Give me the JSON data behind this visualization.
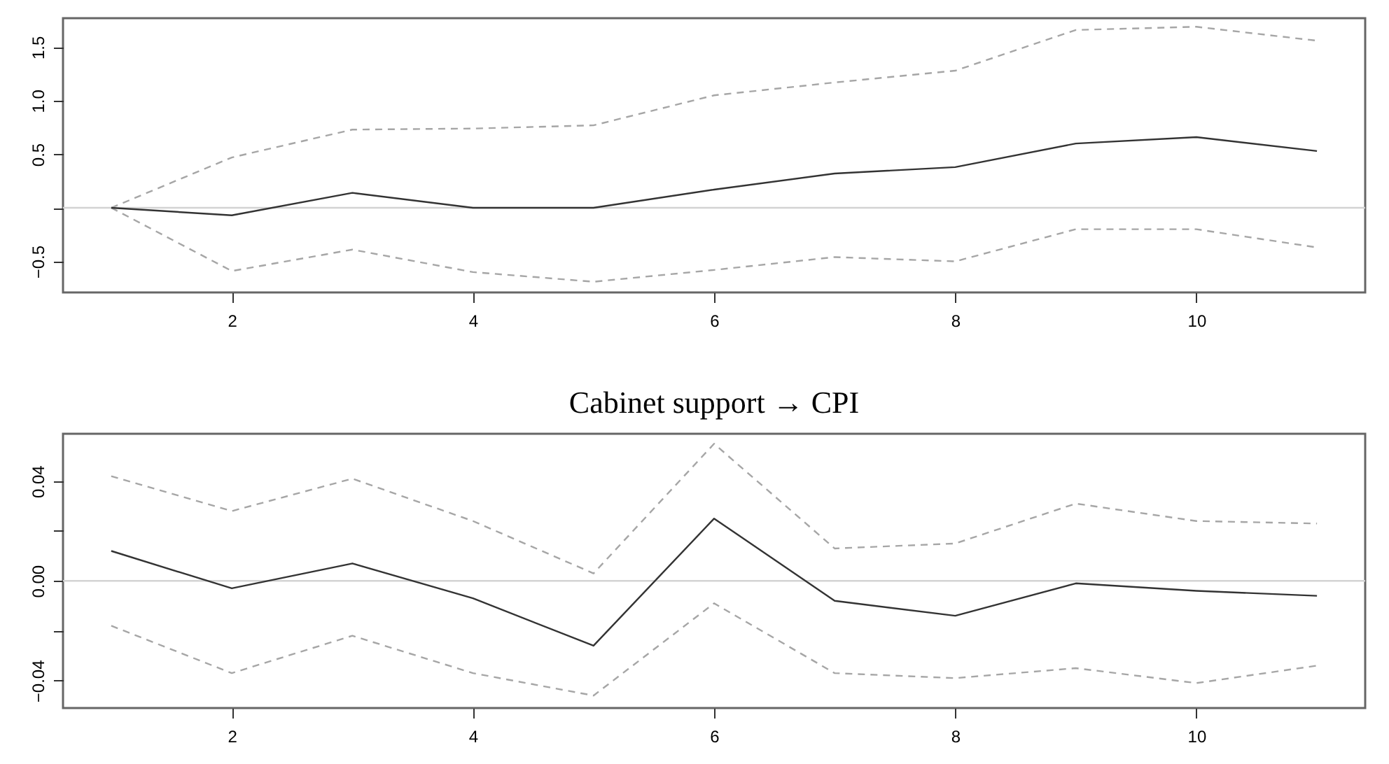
{
  "chart_data": [
    {
      "type": "line",
      "x": [
        1,
        2,
        3,
        4,
        5,
        6,
        7,
        8,
        9,
        10,
        11
      ],
      "xlim": [
        0.6,
        11.4
      ],
      "xticks": [
        2,
        4,
        6,
        8,
        10
      ],
      "ylim": [
        -0.79,
        1.77
      ],
      "yticks": [
        {
          "value": -0.5,
          "label": "−0.5"
        },
        {
          "value": 0,
          "label": null
        },
        0.5,
        {
          "value": 1,
          "label": "1.0"
        },
        1.5
      ],
      "grid": false,
      "ref_lines": [
        {
          "axis": "y",
          "value": 0,
          "color": "#d3d3d3"
        }
      ],
      "series": [
        {
          "color": "#a6a6a6",
          "line_style": "dashed",
          "values": [
            0,
            0.47,
            0.73,
            0.74,
            0.77,
            1.05,
            1.17,
            1.28,
            1.66,
            1.69,
            1.56
          ]
        },
        {
          "color": "#a6a6a6",
          "line_style": "dashed",
          "values": [
            0,
            -0.59,
            -0.39,
            -0.6,
            -0.69,
            -0.58,
            -0.46,
            -0.5,
            -0.2,
            -0.2,
            -0.37
          ]
        },
        {
          "color": "#333333",
          "line_style": "solid",
          "values": [
            0,
            -0.07,
            0.14,
            0,
            0,
            0.17,
            0.32,
            0.38,
            0.6,
            0.66,
            0.53
          ]
        }
      ]
    },
    {
      "type": "line",
      "title": "Cabinet support → CPI",
      "x": [
        1,
        2,
        3,
        4,
        5,
        6,
        7,
        8,
        9,
        10,
        11
      ],
      "xlim": [
        0.6,
        11.4
      ],
      "xticks": [
        2,
        4,
        6,
        8,
        10
      ],
      "ylim": [
        -0.051,
        0.059
      ],
      "yticks": [
        {
          "value": -0.04,
          "label": "−0.04"
        },
        {
          "value": -0.02,
          "label": null
        },
        {
          "value": 0,
          "label": "0.00"
        },
        {
          "value": 0.02,
          "label": null
        },
        0.04
      ],
      "grid": false,
      "ref_lines": [
        {
          "axis": "y",
          "value": 0,
          "color": "#d3d3d3"
        }
      ],
      "series": [
        {
          "color": "#a6a6a6",
          "line_style": "dashed",
          "values": [
            0.042,
            0.028,
            0.041,
            0.024,
            0.003,
            0.055,
            0.013,
            0.015,
            0.031,
            0.024,
            0.023
          ]
        },
        {
          "color": "#a6a6a6",
          "line_style": "dashed",
          "values": [
            -0.018,
            -0.037,
            -0.022,
            -0.037,
            -0.046,
            -0.009,
            -0.037,
            -0.039,
            -0.035,
            -0.041,
            -0.034
          ]
        },
        {
          "color": "#333333",
          "line_style": "solid",
          "values": [
            0.012,
            -0.003,
            0.007,
            -0.007,
            -0.026,
            0.025,
            -0.008,
            -0.014,
            -0.001,
            -0.004,
            -0.006
          ]
        }
      ]
    }
  ]
}
